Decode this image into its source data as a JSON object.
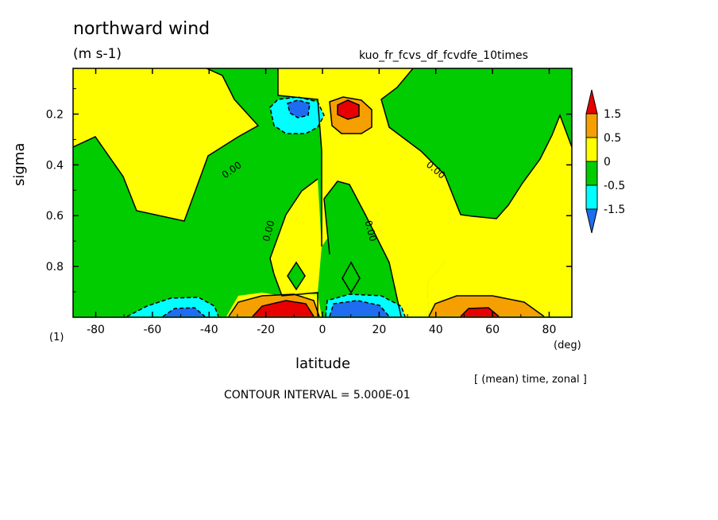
{
  "figure": {
    "title": "northward wind",
    "units": "(m s-1)",
    "run_name": "kuo_fr_fcvs_df_fcvdfe_10times",
    "panel_number": "(1)",
    "x_unit": "(deg)",
    "mean_note": "[ (mean) time, zonal ]",
    "contour_interval": "CONTOUR INTERVAL = 5.000E-01"
  },
  "chart_data": {
    "type": "heatmap",
    "title": "northward wind",
    "xlabel": "latitude",
    "ylabel": "sigma",
    "xlim": [
      -88,
      88
    ],
    "ylim": [
      1.0,
      0.02
    ],
    "y_axis_inverted": true,
    "x_ticks": [
      -80,
      -60,
      -40,
      -20,
      0,
      20,
      40,
      60,
      80
    ],
    "x_tick_labels": [
      "-80",
      "-60",
      "-40",
      "-20",
      "0",
      "20",
      "40",
      "60",
      "80"
    ],
    "y_ticks": [
      0.2,
      0.4,
      0.6,
      0.8
    ],
    "y_tick_labels": [
      "0.2",
      "0.4",
      "0.6",
      "0.8"
    ],
    "contour_interval": 0.5,
    "contour_labels": [
      "0.00",
      "0.00",
      "0.00",
      "0.00"
    ],
    "colorbar": {
      "labels": [
        "1.5",
        "0.5",
        "0",
        "-0.5",
        "-1.5"
      ],
      "levels": [
        -1.5,
        -1.0,
        -0.5,
        0,
        0.5,
        1.0,
        1.5
      ],
      "colors": [
        "#1e6cf0",
        "#00ffff",
        "#00cc00",
        "#ffff00",
        "#f5a000",
        "#e80000"
      ]
    },
    "features": [
      {
        "kind": "max",
        "lat": 10,
        "sigma": 0.19,
        "value": 1.5
      },
      {
        "kind": "min",
        "lat": -10,
        "sigma": 0.19,
        "value": -1.5
      },
      {
        "kind": "max",
        "lat": -12,
        "sigma": 0.98,
        "value": 2.5
      },
      {
        "kind": "min",
        "lat": 12,
        "sigma": 0.98,
        "value": -2.5
      },
      {
        "kind": "min",
        "lat": -55,
        "sigma": 0.98,
        "value": -1.0
      },
      {
        "kind": "max",
        "lat": 55,
        "sigma": 0.98,
        "value": 1.0
      }
    ]
  }
}
